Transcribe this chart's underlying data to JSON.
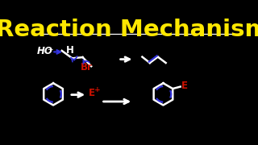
{
  "title": "Reaction Mechanism",
  "title_color": "#FFE800",
  "bg_color": "#000000",
  "line_color": "#FFFFFF",
  "blue_color": "#3333DD",
  "red_color": "#CC1100",
  "title_fontsize": 21,
  "label_fontsize": 8.5,
  "line_width": 1.8,
  "xlim": [
    0,
    10
  ],
  "ylim": [
    0,
    5.6
  ]
}
